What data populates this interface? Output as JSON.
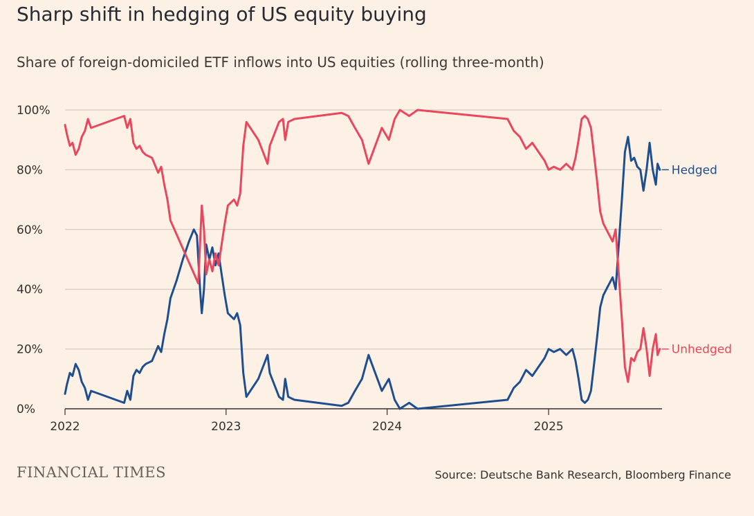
{
  "title": "Sharp shift in hedging of US equity buying",
  "subtitle": "Share of foreign-domiciled ETF inflows into US equities (rolling three-month)",
  "source": "Source: Deutsche Bank Research, Bloomberg Finance",
  "brand": "FINANCIAL TIMES",
  "colors": {
    "background": "#fdf0e4",
    "hedged": "#1f4e8f",
    "unhedged": "#e8475d",
    "grid": "#cfc3b8"
  },
  "chart_data": {
    "type": "line",
    "title": "Sharp shift in hedging of US equity buying",
    "subtitle": "Share of foreign-domiciled ETF inflows into US equities (rolling three-month)",
    "xlabel": "",
    "ylabel": "",
    "x_range": [
      "2022-01-01",
      "2025-09-15"
    ],
    "x_ticks": [
      "2022",
      "2023",
      "2024",
      "2025"
    ],
    "ylim": [
      0,
      100
    ],
    "y_ticks": [
      "0%",
      "20%",
      "40%",
      "60%",
      "80%",
      "100%"
    ],
    "grid": true,
    "legend": "direct labels at line ends",
    "series": [
      {
        "name": "Hedged",
        "color": "#1f4e8f",
        "points": [
          [
            "2022-01-01",
            5
          ],
          [
            "2022-01-05",
            8
          ],
          [
            "2022-01-12",
            12
          ],
          [
            "2022-01-18",
            11
          ],
          [
            "2022-01-25",
            15
          ],
          [
            "2022-02-01",
            13
          ],
          [
            "2022-02-08",
            9
          ],
          [
            "2022-02-15",
            7
          ],
          [
            "2022-02-22",
            3
          ],
          [
            "2022-03-01",
            6
          ],
          [
            "2022-05-15",
            2
          ],
          [
            "2022-05-22",
            6
          ],
          [
            "2022-05-29",
            3
          ],
          [
            "2022-06-05",
            11
          ],
          [
            "2022-06-12",
            13
          ],
          [
            "2022-06-19",
            12
          ],
          [
            "2022-06-26",
            14
          ],
          [
            "2022-07-03",
            15
          ],
          [
            "2022-07-17",
            16
          ],
          [
            "2022-07-31",
            21
          ],
          [
            "2022-08-07",
            19
          ],
          [
            "2022-08-14",
            25
          ],
          [
            "2022-08-21",
            30
          ],
          [
            "2022-08-28",
            37
          ],
          [
            "2022-09-04",
            40
          ],
          [
            "2022-09-11",
            43
          ],
          [
            "2022-09-25",
            50
          ],
          [
            "2022-10-09",
            56
          ],
          [
            "2022-10-20",
            60
          ],
          [
            "2022-10-27",
            58
          ],
          [
            "2022-11-03",
            40
          ],
          [
            "2022-11-07",
            32
          ],
          [
            "2022-11-12",
            40
          ],
          [
            "2022-11-17",
            55
          ],
          [
            "2022-11-24",
            50
          ],
          [
            "2022-12-01",
            54
          ],
          [
            "2022-12-08",
            48
          ],
          [
            "2022-12-15",
            52
          ],
          [
            "2022-12-22",
            45
          ],
          [
            "2022-12-29",
            38
          ],
          [
            "2023-01-05",
            32
          ],
          [
            "2023-01-12",
            31
          ],
          [
            "2023-01-19",
            30
          ],
          [
            "2023-01-26",
            32
          ],
          [
            "2023-02-02",
            28
          ],
          [
            "2023-02-09",
            12
          ],
          [
            "2023-02-16",
            4
          ],
          [
            "2023-03-15",
            10
          ],
          [
            "2023-04-05",
            18
          ],
          [
            "2023-04-10",
            12
          ],
          [
            "2023-05-01",
            4
          ],
          [
            "2023-05-10",
            3
          ],
          [
            "2023-05-15",
            10
          ],
          [
            "2023-05-22",
            4
          ],
          [
            "2023-06-05",
            3
          ],
          [
            "2023-09-20",
            1
          ],
          [
            "2023-10-05",
            2
          ],
          [
            "2023-10-20",
            6
          ],
          [
            "2023-11-05",
            10
          ],
          [
            "2023-11-20",
            18
          ],
          [
            "2023-12-05",
            12
          ],
          [
            "2023-12-20",
            6
          ],
          [
            "2024-01-05",
            10
          ],
          [
            "2024-01-18",
            3
          ],
          [
            "2024-01-30",
            0
          ],
          [
            "2024-02-20",
            2
          ],
          [
            "2024-03-10",
            0
          ],
          [
            "2024-09-30",
            3
          ],
          [
            "2024-10-14",
            7
          ],
          [
            "2024-10-28",
            9
          ],
          [
            "2024-11-11",
            13
          ],
          [
            "2024-11-25",
            11
          ],
          [
            "2024-12-09",
            14
          ],
          [
            "2024-12-23",
            17
          ],
          [
            "2025-01-01",
            20
          ],
          [
            "2025-01-13",
            19
          ],
          [
            "2025-01-27",
            20
          ],
          [
            "2025-02-10",
            18
          ],
          [
            "2025-02-24",
            20
          ],
          [
            "2025-03-03",
            16
          ],
          [
            "2025-03-10",
            10
          ],
          [
            "2025-03-17",
            3
          ],
          [
            "2025-03-24",
            2
          ],
          [
            "2025-03-31",
            3
          ],
          [
            "2025-04-07",
            6
          ],
          [
            "2025-04-14",
            15
          ],
          [
            "2025-04-21",
            24
          ],
          [
            "2025-04-28",
            34
          ],
          [
            "2025-05-05",
            38
          ],
          [
            "2025-05-12",
            40
          ],
          [
            "2025-05-19",
            42
          ],
          [
            "2025-05-26",
            44
          ],
          [
            "2025-06-02",
            40
          ],
          [
            "2025-06-09",
            55
          ],
          [
            "2025-06-16",
            70
          ],
          [
            "2025-06-23",
            86
          ],
          [
            "2025-06-30",
            91
          ],
          [
            "2025-07-07",
            83
          ],
          [
            "2025-07-14",
            84
          ],
          [
            "2025-07-21",
            81
          ],
          [
            "2025-07-28",
            80
          ],
          [
            "2025-08-04",
            73
          ],
          [
            "2025-08-11",
            80
          ],
          [
            "2025-08-18",
            89
          ],
          [
            "2025-08-25",
            80
          ],
          [
            "2025-09-01",
            75
          ],
          [
            "2025-09-05",
            82
          ],
          [
            "2025-09-10",
            80
          ]
        ]
      },
      {
        "name": "Unhedged",
        "color": "#e8475d",
        "points": [
          [
            "2022-01-01",
            95
          ],
          [
            "2022-01-05",
            92
          ],
          [
            "2022-01-12",
            88
          ],
          [
            "2022-01-18",
            89
          ],
          [
            "2022-01-25",
            85
          ],
          [
            "2022-02-01",
            87
          ],
          [
            "2022-02-08",
            91
          ],
          [
            "2022-02-15",
            93
          ],
          [
            "2022-02-22",
            97
          ],
          [
            "2022-03-01",
            94
          ],
          [
            "2022-05-15",
            98
          ],
          [
            "2022-05-22",
            94
          ],
          [
            "2022-05-29",
            97
          ],
          [
            "2022-06-05",
            89
          ],
          [
            "2022-06-12",
            87
          ],
          [
            "2022-06-19",
            88
          ],
          [
            "2022-06-26",
            86
          ],
          [
            "2022-07-03",
            85
          ],
          [
            "2022-07-17",
            84
          ],
          [
            "2022-07-31",
            79
          ],
          [
            "2022-08-07",
            81
          ],
          [
            "2022-08-14",
            75
          ],
          [
            "2022-08-21",
            70
          ],
          [
            "2022-08-28",
            63
          ],
          [
            "2022-10-30",
            42
          ],
          [
            "2022-11-07",
            68
          ],
          [
            "2022-11-12",
            60
          ],
          [
            "2022-11-17",
            45
          ],
          [
            "2022-11-24",
            50
          ],
          [
            "2022-12-01",
            46
          ],
          [
            "2022-12-08",
            52
          ],
          [
            "2022-12-15",
            48
          ],
          [
            "2022-12-22",
            55
          ],
          [
            "2022-12-29",
            62
          ],
          [
            "2023-01-05",
            68
          ],
          [
            "2023-01-12",
            69
          ],
          [
            "2023-01-19",
            70
          ],
          [
            "2023-01-26",
            68
          ],
          [
            "2023-02-02",
            72
          ],
          [
            "2023-02-09",
            88
          ],
          [
            "2023-02-16",
            96
          ],
          [
            "2023-03-15",
            90
          ],
          [
            "2023-04-05",
            82
          ],
          [
            "2023-04-10",
            88
          ],
          [
            "2023-05-01",
            96
          ],
          [
            "2023-05-10",
            97
          ],
          [
            "2023-05-15",
            90
          ],
          [
            "2023-05-22",
            96
          ],
          [
            "2023-06-05",
            97
          ],
          [
            "2023-09-20",
            99
          ],
          [
            "2023-10-05",
            98
          ],
          [
            "2023-10-20",
            94
          ],
          [
            "2023-11-05",
            90
          ],
          [
            "2023-11-20",
            82
          ],
          [
            "2023-12-05",
            88
          ],
          [
            "2023-12-20",
            94
          ],
          [
            "2024-01-05",
            90
          ],
          [
            "2024-01-18",
            97
          ],
          [
            "2024-01-30",
            100
          ],
          [
            "2024-02-20",
            98
          ],
          [
            "2024-03-10",
            100
          ],
          [
            "2024-09-30",
            97
          ],
          [
            "2024-10-14",
            93
          ],
          [
            "2024-10-28",
            91
          ],
          [
            "2024-11-11",
            87
          ],
          [
            "2024-11-25",
            89
          ],
          [
            "2024-12-09",
            86
          ],
          [
            "2024-12-23",
            83
          ],
          [
            "2025-01-01",
            80
          ],
          [
            "2025-01-13",
            81
          ],
          [
            "2025-01-27",
            80
          ],
          [
            "2025-02-10",
            82
          ],
          [
            "2025-02-24",
            80
          ],
          [
            "2025-03-03",
            84
          ],
          [
            "2025-03-10",
            90
          ],
          [
            "2025-03-17",
            97
          ],
          [
            "2025-03-24",
            98
          ],
          [
            "2025-03-31",
            97
          ],
          [
            "2025-04-07",
            94
          ],
          [
            "2025-04-14",
            85
          ],
          [
            "2025-04-21",
            76
          ],
          [
            "2025-04-28",
            66
          ],
          [
            "2025-05-05",
            62
          ],
          [
            "2025-05-12",
            60
          ],
          [
            "2025-05-19",
            58
          ],
          [
            "2025-05-26",
            56
          ],
          [
            "2025-06-02",
            60
          ],
          [
            "2025-06-09",
            45
          ],
          [
            "2025-06-16",
            30
          ],
          [
            "2025-06-23",
            14
          ],
          [
            "2025-06-30",
            9
          ],
          [
            "2025-07-07",
            17
          ],
          [
            "2025-07-14",
            16
          ],
          [
            "2025-07-21",
            19
          ],
          [
            "2025-07-28",
            20
          ],
          [
            "2025-08-04",
            27
          ],
          [
            "2025-08-11",
            20
          ],
          [
            "2025-08-18",
            11
          ],
          [
            "2025-08-25",
            20
          ],
          [
            "2025-09-01",
            25
          ],
          [
            "2025-09-05",
            18
          ],
          [
            "2025-09-10",
            20
          ]
        ]
      }
    ]
  }
}
